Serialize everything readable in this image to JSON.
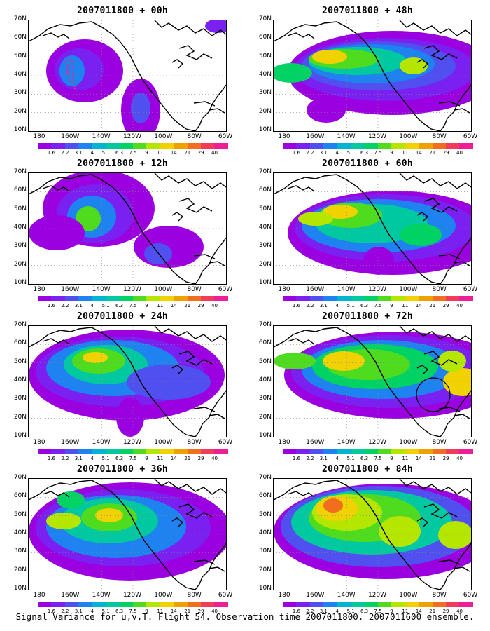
{
  "caption": "Signal Variance for u,v,T. Flight 54. Observation time 2007011800. 2007011600 ensemble.",
  "lat_labels": [
    "70N",
    "60N",
    "50N",
    "40N",
    "30N",
    "20N",
    "10N"
  ],
  "lon_labels": [
    "180",
    "160W",
    "140W",
    "120W",
    "100W",
    "80W",
    "60W"
  ],
  "colorbar_labels": [
    "1.6",
    "2.2",
    "3.1",
    "4",
    "5.1",
    "6.3",
    "7.5",
    "9",
    "11",
    "14",
    "21",
    "29",
    "40"
  ],
  "colorbar_colors": [
    "#9b00e0",
    "#7a20f0",
    "#5050f0",
    "#1e82f0",
    "#00b4d2",
    "#00c8a0",
    "#00d264",
    "#50dc1e",
    "#b4e600",
    "#f0d200",
    "#f0a000",
    "#f06e1e",
    "#f03c5a",
    "#f01e96"
  ],
  "panels": [
    {
      "title": "2007011800 + 00h",
      "lead_hours": 0,
      "flight_track": true,
      "circle": false
    },
    {
      "title": "2007011800 + 48h",
      "lead_hours": 48,
      "flight_track": false,
      "circle": false
    },
    {
      "title": "2007011800 + 12h",
      "lead_hours": 12,
      "flight_track": false,
      "circle": false
    },
    {
      "title": "2007011800 + 60h",
      "lead_hours": 60,
      "flight_track": false,
      "circle": false
    },
    {
      "title": "2007011800 + 24h",
      "lead_hours": 24,
      "flight_track": false,
      "circle": false
    },
    {
      "title": "2007011800 + 72h",
      "lead_hours": 72,
      "flight_track": false,
      "circle": true
    },
    {
      "title": "2007011800 + 36h",
      "lead_hours": 36,
      "flight_track": false,
      "circle": false
    },
    {
      "title": "2007011800 + 84h",
      "lead_hours": 84,
      "flight_track": false,
      "circle": false
    }
  ]
}
